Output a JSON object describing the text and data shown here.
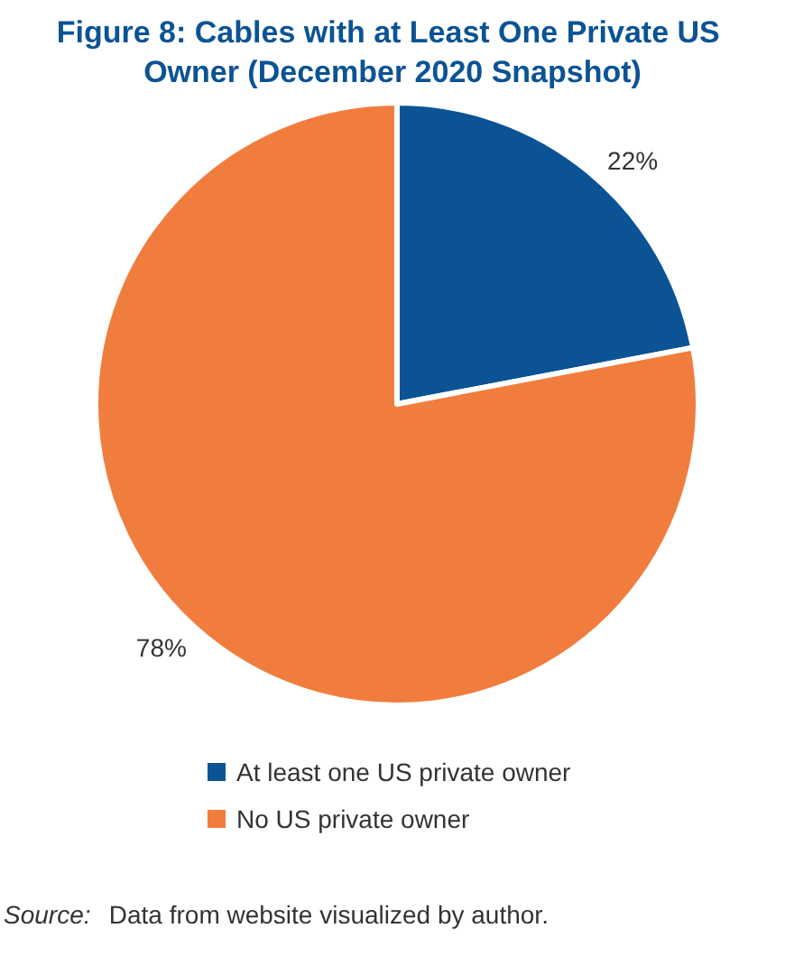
{
  "chart_data": {
    "type": "pie",
    "title": "Figure 8: Cables with at Least One Private US Owner (December 2020 Snapshot)",
    "categories": [
      "At least one US private owner",
      "No US private owner"
    ],
    "values": [
      22,
      78
    ],
    "colors": [
      "#0b5394",
      "#f07d3e"
    ],
    "value_labels": [
      "22%",
      "78%"
    ],
    "legend": "bottom",
    "annotations": [
      "Source: Data from website visualized by author."
    ]
  }
}
